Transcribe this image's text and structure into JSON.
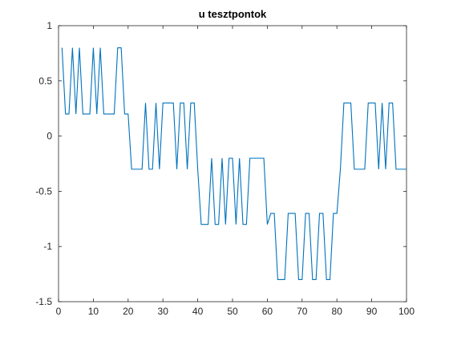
{
  "chart_data": {
    "type": "line",
    "title": "u tesztpontok",
    "xlabel": "",
    "ylabel": "",
    "xlim": [
      0,
      100
    ],
    "ylim": [
      -1.5,
      1
    ],
    "xticks": [
      0,
      10,
      20,
      30,
      40,
      50,
      60,
      70,
      80,
      90,
      100
    ],
    "yticks": [
      -1.5,
      -1,
      -0.5,
      0,
      0.5,
      1
    ],
    "ytick_labels": [
      "-1.5",
      "-1",
      "-0.5",
      "0",
      "0.5",
      "1"
    ],
    "grid": false,
    "box": true,
    "series": [
      {
        "color": "#0072BD",
        "x": [
          1,
          2,
          3,
          4,
          5,
          6,
          7,
          8,
          9,
          10,
          11,
          12,
          13,
          14,
          15,
          16,
          17,
          18,
          19,
          20,
          21,
          22,
          23,
          24,
          25,
          26,
          27,
          28,
          29,
          30,
          31,
          32,
          33,
          34,
          35,
          36,
          37,
          38,
          39,
          40,
          41,
          42,
          43,
          44,
          45,
          46,
          47,
          48,
          49,
          50,
          51,
          52,
          53,
          54,
          55,
          56,
          57,
          58,
          59,
          60,
          61,
          62,
          63,
          64,
          65,
          66,
          67,
          68,
          69,
          70,
          71,
          72,
          73,
          74,
          75,
          76,
          77,
          78,
          79,
          80,
          81,
          82,
          83,
          84,
          85,
          86,
          87,
          88,
          89,
          90,
          91,
          92,
          93,
          94,
          95,
          96,
          97,
          98,
          99,
          100
        ],
        "y": [
          0.8,
          0.2,
          0.2,
          0.8,
          0.2,
          0.8,
          0.2,
          0.2,
          0.2,
          0.8,
          0.2,
          0.8,
          0.2,
          0.2,
          0.2,
          0.2,
          0.8,
          0.8,
          0.2,
          0.2,
          -0.3,
          -0.3,
          -0.3,
          -0.3,
          0.3,
          -0.3,
          -0.3,
          0.3,
          -0.3,
          0.3,
          0.3,
          0.3,
          0.3,
          -0.3,
          0.3,
          0.3,
          -0.3,
          0.3,
          0.3,
          -0.3,
          -0.8,
          -0.8,
          -0.8,
          -0.2,
          -0.8,
          -0.8,
          -0.2,
          -0.8,
          -0.2,
          -0.2,
          -0.8,
          -0.2,
          -0.8,
          -0.8,
          -0.2,
          -0.2,
          -0.2,
          -0.2,
          -0.2,
          -0.8,
          -0.7,
          -0.7,
          -1.3,
          -1.3,
          -1.3,
          -0.7,
          -0.7,
          -0.7,
          -1.3,
          -1.3,
          -0.7,
          -0.7,
          -1.3,
          -1.3,
          -0.7,
          -0.7,
          -1.3,
          -1.3,
          -0.7,
          -0.7,
          -0.3,
          0.3,
          0.3,
          0.3,
          -0.3,
          -0.3,
          -0.3,
          -0.3,
          0.3,
          0.3,
          0.3,
          -0.3,
          0.3,
          -0.3,
          0.3,
          0.3,
          -0.3,
          -0.3,
          -0.3,
          -0.3
        ]
      }
    ]
  }
}
